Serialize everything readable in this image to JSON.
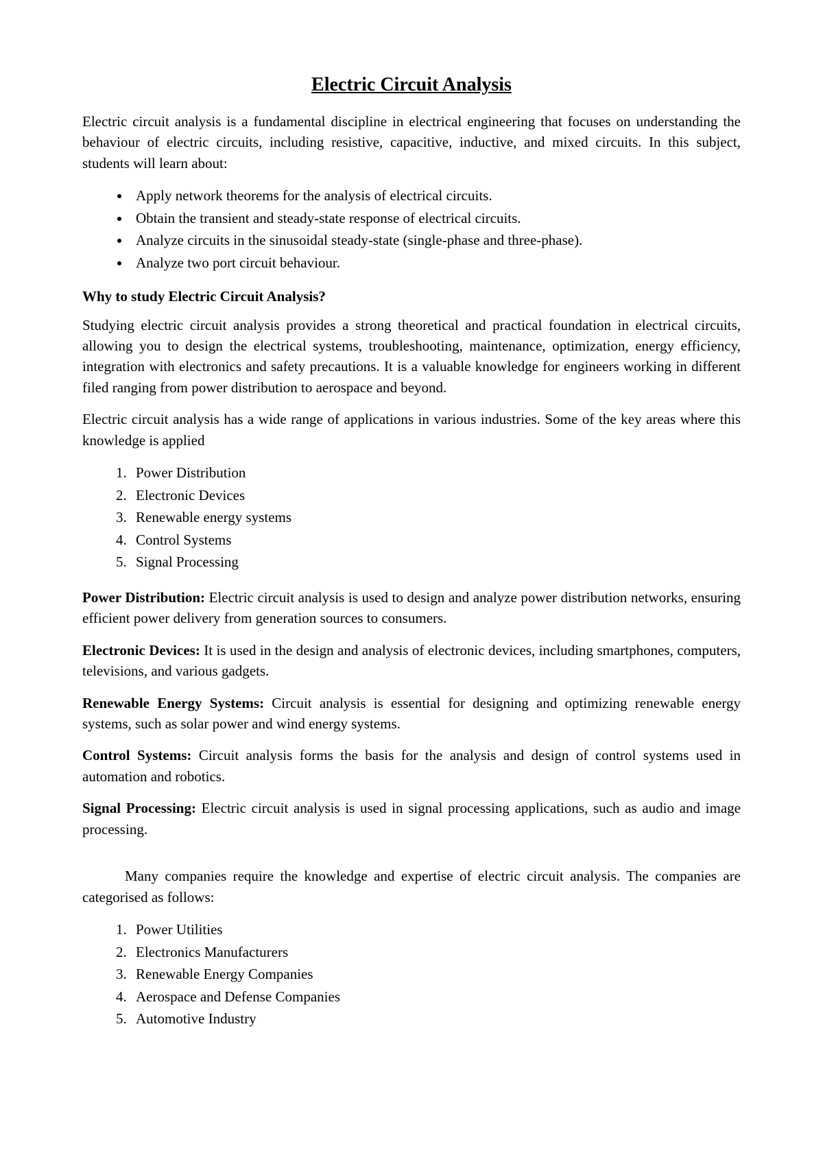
{
  "title": "Electric Circuit Analysis",
  "intro": "Electric circuit analysis is a fundamental discipline in electrical engineering that focuses on understanding the behaviour of electric circuits, including resistive, capacitive, inductive, and mixed circuits. In this subject, students will learn about:",
  "objectives": [
    "Apply network theorems for the analysis of electrical circuits.",
    "Obtain the transient and steady-state response of electrical circuits.",
    "Analyze circuits in the sinusoidal steady-state (single-phase and three-phase).",
    "Analyze two port circuit behaviour."
  ],
  "why_heading": "Why to study Electric Circuit Analysis?",
  "why_para": "Studying electric circuit analysis provides a strong theoretical and practical foundation in electrical circuits, allowing you to design the electrical systems, troubleshooting, maintenance, optimization, energy efficiency, integration with electronics and safety precautions. It is a valuable knowledge for engineers working in different filed ranging from power distribution to aerospace and beyond.",
  "applications_intro": "Electric circuit analysis has a wide range of applications in various industries. Some of the key areas where this knowledge is applied",
  "applications_list": [
    "Power Distribution",
    "Electronic Devices",
    "Renewable energy systems",
    "Control Systems",
    "Signal Processing"
  ],
  "definitions": [
    {
      "term": "Power Distribution:",
      "text": " Electric circuit analysis is used to design and analyze power distribution networks, ensuring efficient power delivery from generation sources to consumers."
    },
    {
      "term": "Electronic Devices:",
      "text": " It is used in the design and analysis of electronic devices, including smartphones, computers, televisions, and various gadgets."
    },
    {
      "term": "Renewable Energy Systems:",
      "text": " Circuit analysis is essential for designing and optimizing renewable energy systems, such as solar power and wind energy systems."
    },
    {
      "term": "Control Systems:",
      "text": " Circuit analysis forms the basis for the analysis and design of control systems used in automation and robotics."
    },
    {
      "term": "Signal Processing:",
      "text": " Electric circuit analysis is used in signal processing applications, such as audio and image processing."
    }
  ],
  "companies_intro": "Many companies require the knowledge and expertise of electric circuit analysis. The companies are categorised as follows:",
  "companies_list": [
    "Power Utilities",
    "Electronics Manufacturers",
    "Renewable Energy Companies",
    "Aerospace and Defense Companies",
    "Automotive Industry"
  ],
  "colors": {
    "background": "#ffffff",
    "text": "#000000"
  },
  "typography": {
    "font_family": "Times New Roman",
    "title_fontsize": 28,
    "body_fontsize": 21
  }
}
